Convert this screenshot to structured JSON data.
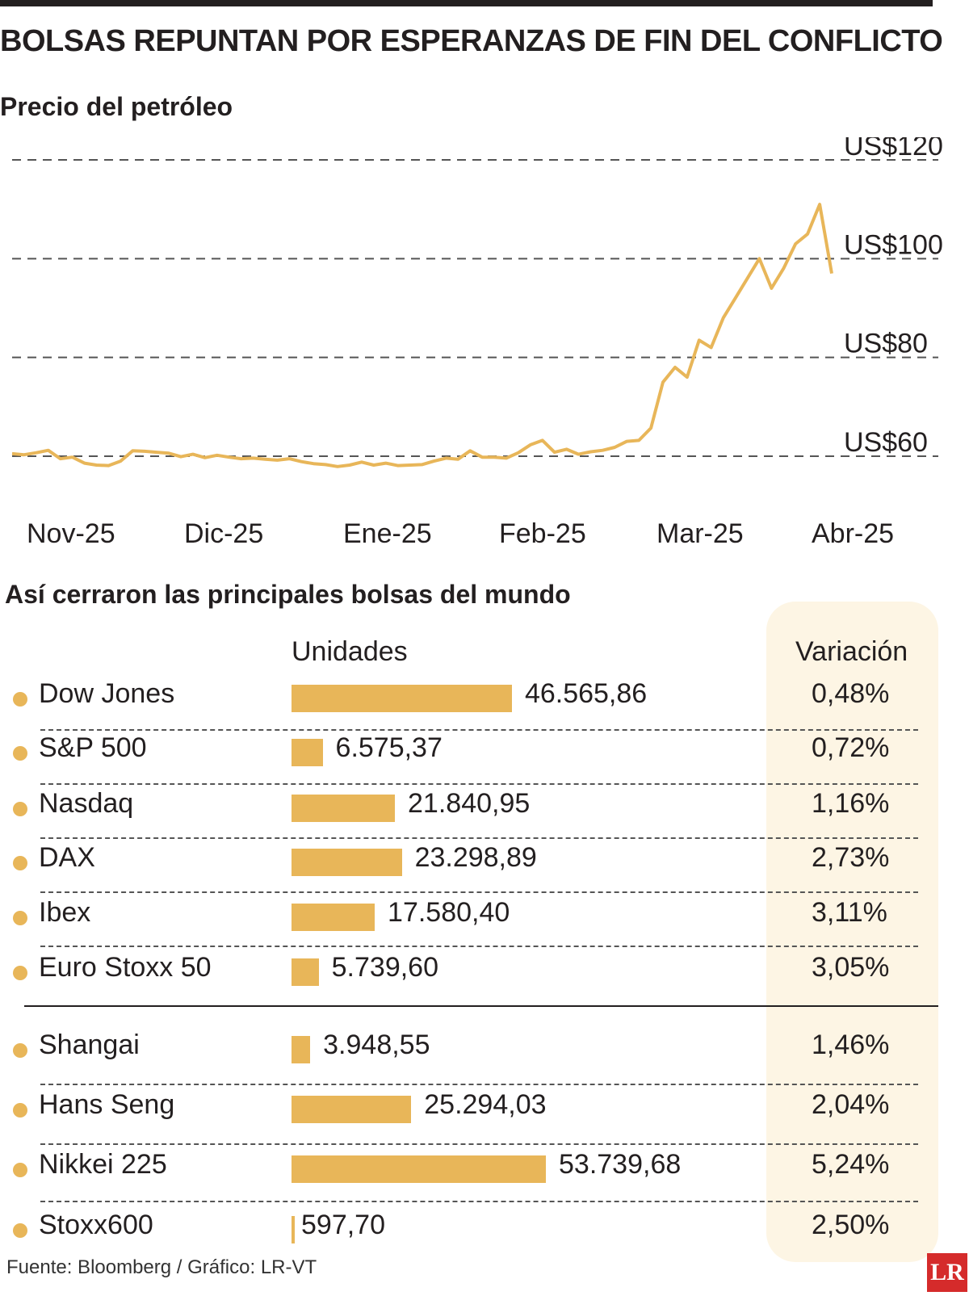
{
  "title": "BOLSAS REPUNTAN POR ESPERANZAS DE FIN DEL CONFLICTO",
  "subtitle": "Precio del petróleo",
  "section_title": "Así cerraron las principales bolsas del mundo",
  "col_units": "Unidades",
  "col_variation": "Variación",
  "source": "Fuente: Bloomberg / Gráfico: LR-VT",
  "logo": "LR",
  "colors": {
    "accent": "#e8b659",
    "variation_bg": "#fdf5e4",
    "text": "#231f20",
    "logo": "#d52b2b"
  },
  "chart_data": [
    {
      "type": "line",
      "title": "Precio del petróleo",
      "x_tick_labels": [
        "Nov-25",
        "Dic-25",
        "Ene-25",
        "Feb-25",
        "Mar-25",
        "Abr-25"
      ],
      "y_tick_values": [
        60,
        80,
        100,
        120
      ],
      "y_tick_labels": [
        "US$60",
        "US$80",
        "US$100",
        "US$120"
      ],
      "ylim": [
        60,
        120
      ],
      "grid": true,
      "series": [
        {
          "values": [
            60.5,
            60.3,
            60.7,
            61.2,
            59.5,
            59.8,
            58.6,
            58.2,
            58.1,
            59.0,
            61.1,
            61.0,
            60.8,
            60.6,
            59.9,
            60.4,
            59.7,
            60.2,
            59.8,
            59.5,
            59.6,
            59.4,
            59.2,
            59.5,
            58.9,
            58.5,
            58.3,
            57.9,
            58.2,
            58.8,
            58.2,
            58.6,
            58.1,
            58.2,
            58.3,
            59.0,
            59.6,
            59.4,
            61.1,
            59.8,
            59.8,
            59.6,
            60.7,
            62.3,
            63.2,
            60.8,
            61.4,
            60.4,
            60.9,
            61.2,
            61.8,
            63.0,
            63.2,
            65.7,
            75.0,
            78.0,
            76.0,
            83.5,
            82.0,
            88.0,
            92.0,
            96.0,
            100.0,
            94.0,
            98.0,
            103.0,
            105.0,
            111.0,
            97.0
          ]
        }
      ]
    },
    {
      "type": "bar",
      "categories": [
        "Dow Jones",
        "S&P 500",
        "Nasdaq",
        "DAX",
        "Ibex",
        "Euro Stoxx 50",
        "Shangai",
        "Hans Seng",
        "Nikkei 225",
        "Stoxx600"
      ],
      "values": [
        46565.86,
        6575.37,
        21840.95,
        23298.89,
        17580.4,
        5739.6,
        3948.55,
        25294.03,
        53739.68,
        597.7
      ],
      "value_labels": [
        "46.565,86",
        "6.575,37",
        "21.840,95",
        "23.298,89",
        "17.580,40",
        "5.739,60",
        "3.948,55",
        "25.294,03",
        "53.739,68",
        "597,70"
      ],
      "variation_labels": [
        "0,48%",
        "0,72%",
        "1,16%",
        "2,73%",
        "3,11%",
        "3,05%",
        "1,46%",
        "2,04%",
        "5,24%",
        "2,50%"
      ],
      "xlabel": "Unidades"
    }
  ]
}
